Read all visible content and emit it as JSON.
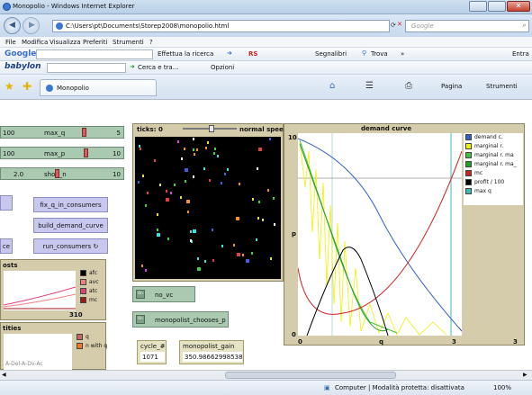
{
  "window": {
    "title": "Monopolio - Windows Internet Explorer"
  },
  "addressbar": {
    "url": "C:\\Users\\pt\\Documents\\Storep2008\\monopolio.html",
    "search_placeholder": "Google"
  },
  "menubar": {
    "items": [
      "File",
      "Modifica",
      "Visualizza",
      "Preferiti",
      "Strumenti",
      "?"
    ]
  },
  "google_toolbar": {
    "brand": "Google",
    "search_label": "Effettua la ricerca",
    "rs_label": "RS",
    "bookmarks_label": "Segnalibri",
    "find_label": "Trova",
    "more": "»",
    "signin_label": "Entra"
  },
  "babylon_toolbar": {
    "brand": "babylon",
    "search_label": "Cerca e tra...",
    "options_label": "Opzioni"
  },
  "tabs": {
    "active": "Monopolio",
    "page_menu": "Pagina",
    "tools_menu": "Strumenti"
  },
  "sliders": [
    {
      "left": "100",
      "name": "max_q",
      "value": "5"
    },
    {
      "left": "100",
      "name": "max_p",
      "value": "10"
    },
    {
      "left": "2.0",
      "name": "shop_n",
      "value": "10"
    }
  ],
  "buttons": {
    "fix_q": "fix_q_in_consumers",
    "build_demand": "build_demand_curve",
    "run_consumers": "run_consumers",
    "left_partial": "ce"
  },
  "costs_plot": {
    "title": "osts",
    "x_value": "310",
    "legend": [
      {
        "label": "afc",
        "color": "#000000"
      },
      {
        "label": "avc",
        "color": "#f08080"
      },
      {
        "label": "atc",
        "color": "#e0407a"
      },
      {
        "label": "mc",
        "color": "#a01818"
      },
      {
        "label": "mc",
        "color": "#f0f000"
      }
    ]
  },
  "quantities_plot": {
    "title": "tities",
    "legend": [
      {
        "label": "q",
        "color": "#c86464"
      },
      {
        "label": "n with q",
        "color": "#f07820"
      }
    ],
    "partial_text": "A-Del-A-Dv-Ac"
  },
  "world": {
    "ticks_label": "ticks: 0",
    "speed_label": "normal speed"
  },
  "switches": [
    {
      "label": "no_vc",
      "state": "On",
      "off": "Off"
    },
    {
      "label": "monopolist_chooses_p",
      "state": "On",
      "off": "Off"
    }
  ],
  "monitors": [
    {
      "label": "cycle_#",
      "value": "1071"
    },
    {
      "label": "monopolist_gain",
      "value": "350.98662998538"
    }
  ],
  "demand_plot": {
    "title": "demand curve",
    "y_label": "p",
    "x_label": "q",
    "y_max": "10",
    "y_min": "0",
    "x_min": "0",
    "x_mid": "3",
    "x_max": "3",
    "legend": [
      {
        "label": "demand c.",
        "color": "#3060c0"
      },
      {
        "label": "marginal r.",
        "color": "#f0f000"
      },
      {
        "label": "marginal r. ma",
        "color": "#40c040"
      },
      {
        "label": "marginal r. ma_",
        "color": "#20a020"
      },
      {
        "label": "mc",
        "color": "#d02020"
      },
      {
        "label": "profit / 100",
        "color": "#000000"
      },
      {
        "label": "max q",
        "color": "#40b8b8"
      }
    ]
  },
  "statusbar": {
    "zone": "Computer | Modalità protetta: disattivata",
    "zoom": "100%"
  }
}
